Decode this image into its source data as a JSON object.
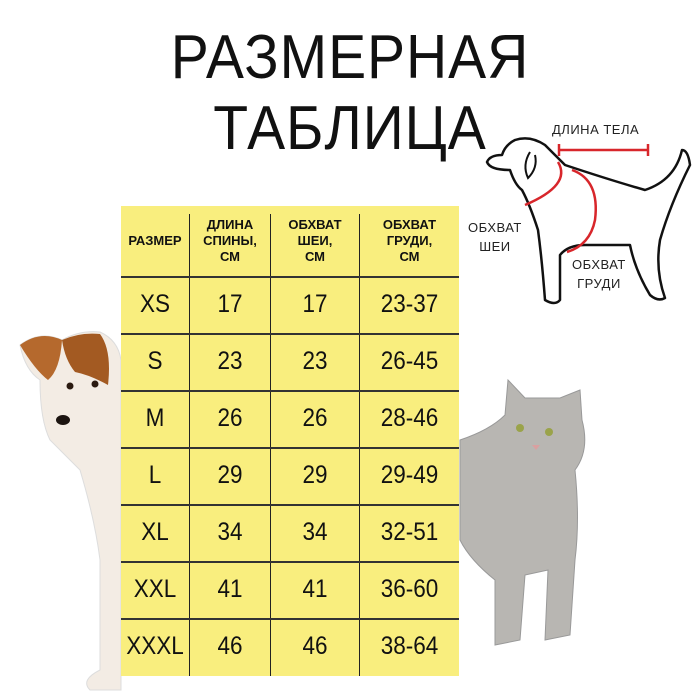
{
  "title": "РАЗМЕРНАЯ ТАБЛИЦА",
  "diagram": {
    "body_length": "ДЛИНА ТЕЛА",
    "neck_girth": [
      "ОБХВАТ",
      "ШЕИ"
    ],
    "chest_girth": [
      "ОБХВАТ",
      "ГРУДИ"
    ],
    "accent_color": "#d8262b"
  },
  "table": {
    "background": "#f9ee7e",
    "headers": [
      [
        "РАЗМЕР"
      ],
      [
        "ДЛИНА",
        "СПИНЫ,",
        "СМ"
      ],
      [
        "ОБХВАТ",
        "ШЕИ,",
        "СМ"
      ],
      [
        "ОБХВАТ",
        "ГРУДИ,",
        "СМ"
      ]
    ],
    "rows": [
      [
        "XS",
        "17",
        "17",
        "23-37"
      ],
      [
        "S",
        "23",
        "23",
        "26-45"
      ],
      [
        "M",
        "26",
        "26",
        "28-46"
      ],
      [
        "L",
        "29",
        "29",
        "29-49"
      ],
      [
        "XL",
        "34",
        "34",
        "32-51"
      ],
      [
        "XXL",
        "41",
        "41",
        "36-60"
      ],
      [
        "XXXL",
        "46",
        "46",
        "38-64"
      ]
    ]
  }
}
